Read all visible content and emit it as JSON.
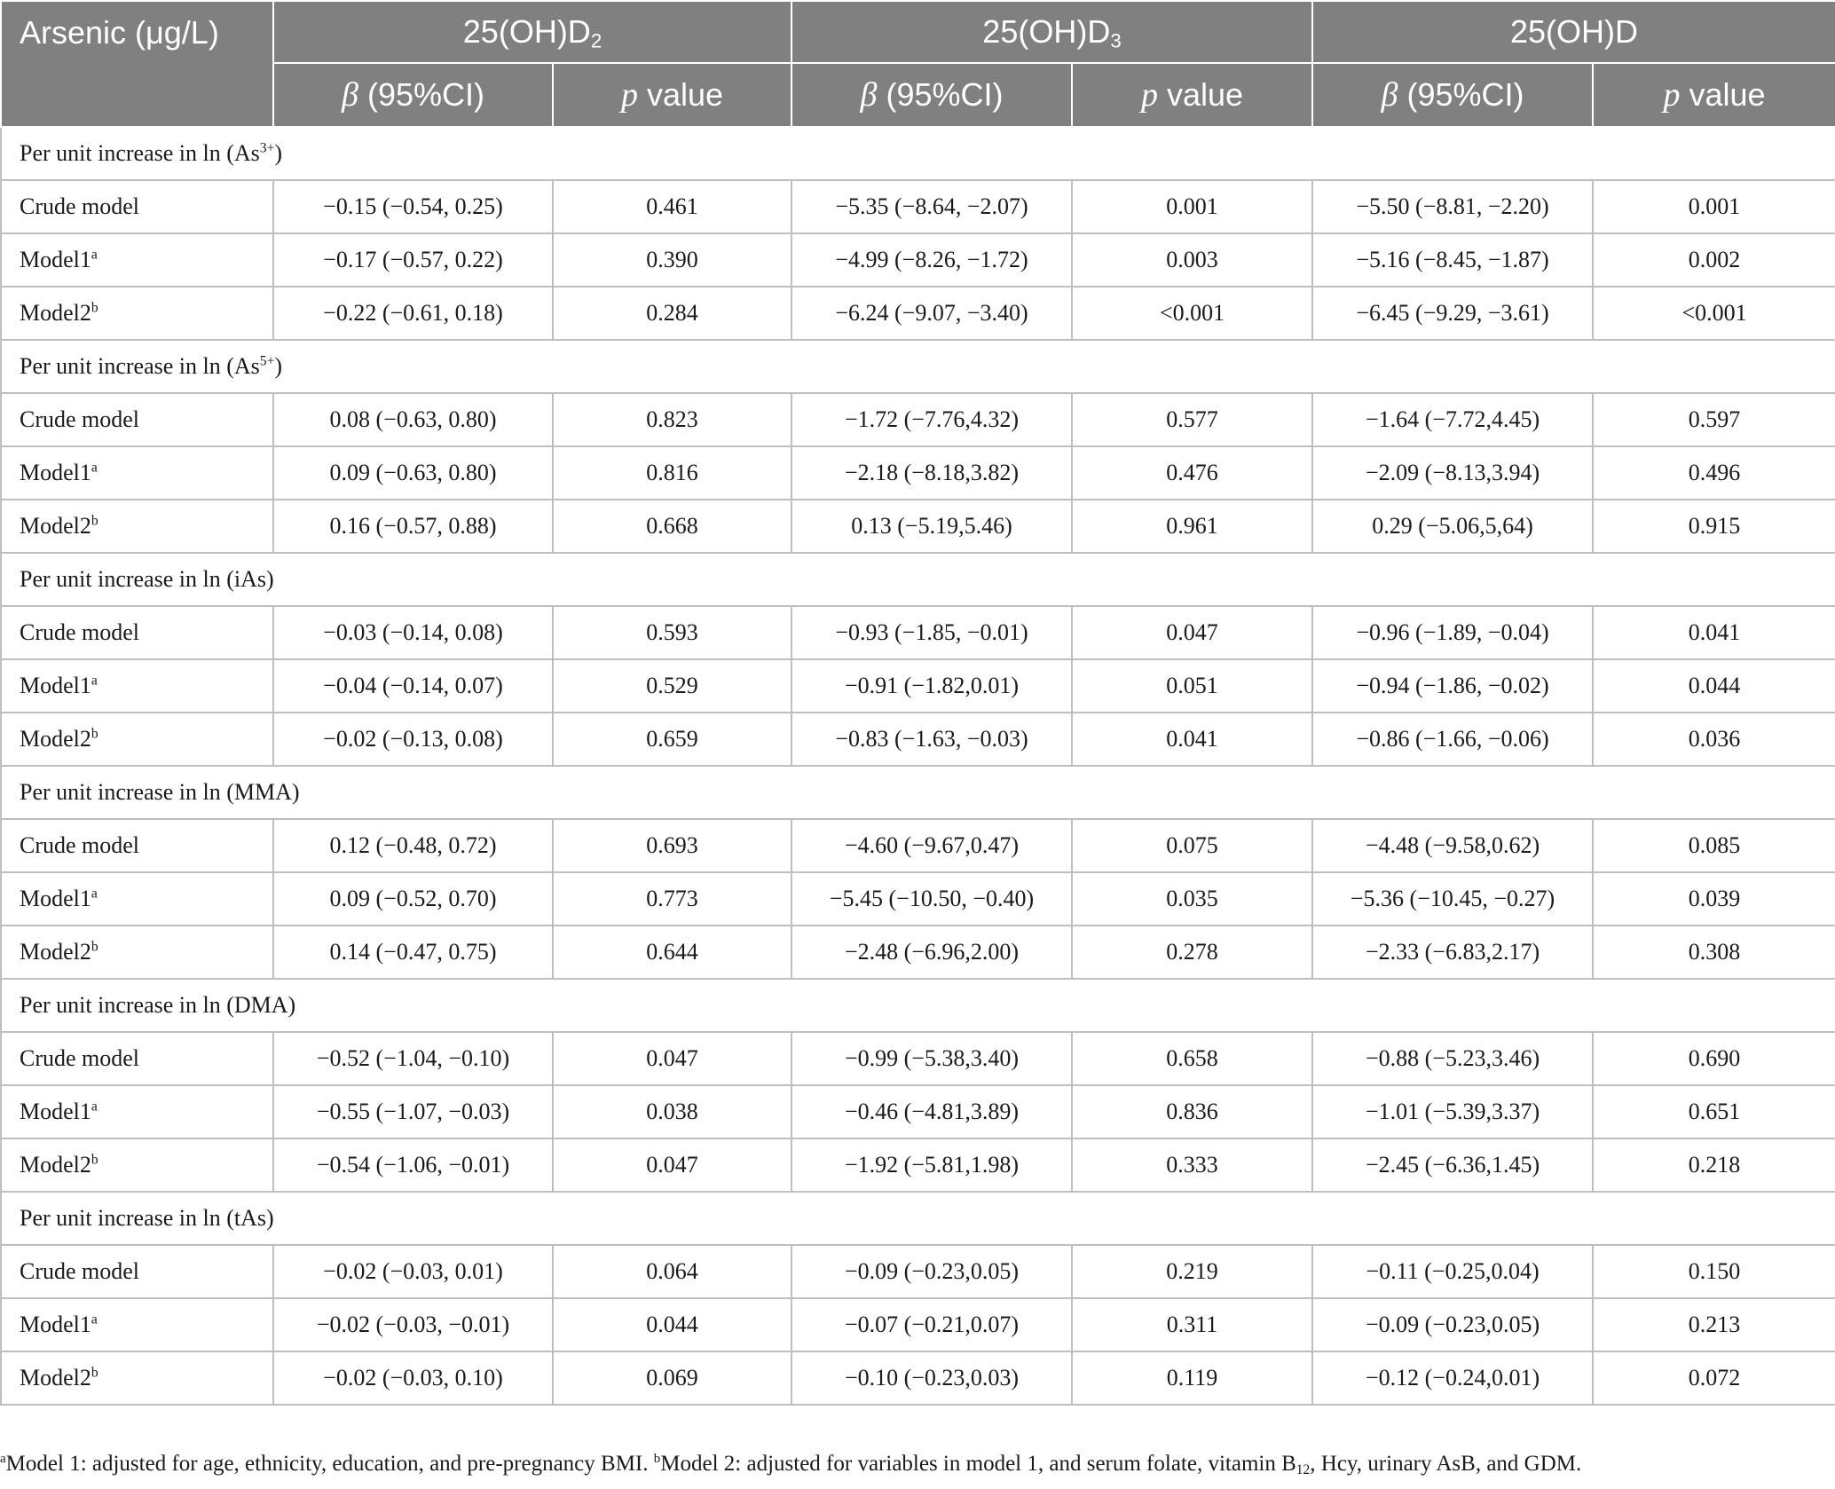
{
  "header": {
    "arsenic": "Arsenic (μg/L)",
    "col_d2": {
      "base": "25(OH)D",
      "sub": "2"
    },
    "col_d3": {
      "base": "25(OH)D",
      "sub": "3"
    },
    "col_d": "25(OH)D",
    "beta_sym": "β",
    "beta_rest": " (95%CI)",
    "p_sym": "p",
    "p_rest": " value"
  },
  "groups": [
    {
      "label": "Per unit increase in ln (As",
      "sup": "3+",
      "label_end": ")",
      "rows": [
        {
          "model": "Crude model",
          "msup": "",
          "d2_beta": "−0.15 (−0.54, 0.25)",
          "d2_p": "0.461",
          "d3_beta": "−5.35 (−8.64, −2.07)",
          "d3_p": "0.001",
          "d_beta": "−5.50 (−8.81, −2.20)",
          "d_p": "0.001"
        },
        {
          "model": "Model1",
          "msup": "a",
          "d2_beta": "−0.17 (−0.57, 0.22)",
          "d2_p": "0.390",
          "d3_beta": "−4.99 (−8.26, −1.72)",
          "d3_p": "0.003",
          "d_beta": "−5.16 (−8.45, −1.87)",
          "d_p": "0.002"
        },
        {
          "model": "Model2",
          "msup": "b",
          "d2_beta": "−0.22 (−0.61, 0.18)",
          "d2_p": "0.284",
          "d3_beta": "−6.24 (−9.07, −3.40)",
          "d3_p": "<0.001",
          "d_beta": "−6.45 (−9.29, −3.61)",
          "d_p": "<0.001"
        }
      ]
    },
    {
      "label": "Per unit increase in ln (As",
      "sup": "5+",
      "label_end": ")",
      "rows": [
        {
          "model": "Crude model",
          "msup": "",
          "d2_beta": "0.08 (−0.63, 0.80)",
          "d2_p": "0.823",
          "d3_beta": "−1.72 (−7.76,4.32)",
          "d3_p": "0.577",
          "d_beta": "−1.64 (−7.72,4.45)",
          "d_p": "0.597"
        },
        {
          "model": "Model1",
          "msup": "a",
          "d2_beta": "0.09 (−0.63, 0.80)",
          "d2_p": "0.816",
          "d3_beta": "−2.18 (−8.18,3.82)",
          "d3_p": "0.476",
          "d_beta": "−2.09 (−8.13,3.94)",
          "d_p": "0.496"
        },
        {
          "model": "Model2",
          "msup": "b",
          "d2_beta": "0.16 (−0.57, 0.88)",
          "d2_p": "0.668",
          "d3_beta": "0.13 (−5.19,5.46)",
          "d3_p": "0.961",
          "d_beta": "0.29 (−5.06,5,64)",
          "d_p": "0.915"
        }
      ]
    },
    {
      "label": "Per unit increase in ln (iAs)",
      "sup": "",
      "label_end": "",
      "rows": [
        {
          "model": "Crude model",
          "msup": "",
          "d2_beta": "−0.03 (−0.14, 0.08)",
          "d2_p": "0.593",
          "d3_beta": "−0.93 (−1.85, −0.01)",
          "d3_p": "0.047",
          "d_beta": "−0.96 (−1.89, −0.04)",
          "d_p": "0.041"
        },
        {
          "model": "Model1",
          "msup": "a",
          "d2_beta": "−0.04 (−0.14, 0.07)",
          "d2_p": "0.529",
          "d3_beta": "−0.91 (−1.82,0.01)",
          "d3_p": "0.051",
          "d_beta": "−0.94 (−1.86, −0.02)",
          "d_p": "0.044"
        },
        {
          "model": "Model2",
          "msup": "b",
          "d2_beta": "−0.02 (−0.13, 0.08)",
          "d2_p": "0.659",
          "d3_beta": "−0.83 (−1.63, −0.03)",
          "d3_p": "0.041",
          "d_beta": "−0.86 (−1.66, −0.06)",
          "d_p": "0.036"
        }
      ]
    },
    {
      "label": "Per unit increase in ln (MMA)",
      "sup": "",
      "label_end": "",
      "rows": [
        {
          "model": "Crude model",
          "msup": "",
          "d2_beta": "0.12 (−0.48, 0.72)",
          "d2_p": "0.693",
          "d3_beta": "−4.60 (−9.67,0.47)",
          "d3_p": "0.075",
          "d_beta": "−4.48 (−9.58,0.62)",
          "d_p": "0.085"
        },
        {
          "model": "Model1",
          "msup": "a",
          "d2_beta": "0.09 (−0.52, 0.70)",
          "d2_p": "0.773",
          "d3_beta": "−5.45 (−10.50, −0.40)",
          "d3_p": "0.035",
          "d_beta": "−5.36 (−10.45, −0.27)",
          "d_p": "0.039"
        },
        {
          "model": "Model2",
          "msup": "b",
          "d2_beta": "0.14 (−0.47, 0.75)",
          "d2_p": "0.644",
          "d3_beta": "−2.48 (−6.96,2.00)",
          "d3_p": "0.278",
          "d_beta": "−2.33 (−6.83,2.17)",
          "d_p": "0.308"
        }
      ]
    },
    {
      "label": "Per unit increase in ln (DMA)",
      "sup": "",
      "label_end": "",
      "rows": [
        {
          "model": "Crude model",
          "msup": "",
          "d2_beta": "−0.52 (−1.04, −0.10)",
          "d2_p": "0.047",
          "d3_beta": "−0.99 (−5.38,3.40)",
          "d3_p": "0.658",
          "d_beta": "−0.88 (−5.23,3.46)",
          "d_p": "0.690"
        },
        {
          "model": "Model1",
          "msup": "a",
          "d2_beta": "−0.55 (−1.07, −0.03)",
          "d2_p": "0.038",
          "d3_beta": "−0.46 (−4.81,3.89)",
          "d3_p": "0.836",
          "d_beta": "−1.01 (−5.39,3.37)",
          "d_p": "0.651"
        },
        {
          "model": "Model2",
          "msup": "b",
          "d2_beta": "−0.54 (−1.06, −0.01)",
          "d2_p": "0.047",
          "d3_beta": "−1.92 (−5.81,1.98)",
          "d3_p": "0.333",
          "d_beta": "−2.45 (−6.36,1.45)",
          "d_p": "0.218"
        }
      ]
    },
    {
      "label": "Per unit increase in ln (tAs)",
      "sup": "",
      "label_end": "",
      "rows": [
        {
          "model": "Crude model",
          "msup": "",
          "d2_beta": "−0.02 (−0.03, 0.01)",
          "d2_p": "0.064",
          "d3_beta": "−0.09 (−0.23,0.05)",
          "d3_p": "0.219",
          "d_beta": "−0.11 (−0.25,0.04)",
          "d_p": "0.150"
        },
        {
          "model": "Model1",
          "msup": "a",
          "d2_beta": "−0.02 (−0.03, −0.01)",
          "d2_p": "0.044",
          "d3_beta": "−0.07 (−0.21,0.07)",
          "d3_p": "0.311",
          "d_beta": "−0.09 (−0.23,0.05)",
          "d_p": "0.213"
        },
        {
          "model": "Model2",
          "msup": "b",
          "d2_beta": "−0.02 (−0.03, 0.10)",
          "d2_p": "0.069",
          "d3_beta": "−0.10 (−0.23,0.03)",
          "d3_p": "0.119",
          "d_beta": "−0.12 (−0.24,0.01)",
          "d_p": "0.072"
        }
      ]
    }
  ],
  "footnote": {
    "a_mark": "a",
    "a_text": "Model 1: adjusted for age, ethnicity, education, and pre-pregnancy BMI. ",
    "b_mark": "b",
    "b_text_1": "Model 2: adjusted for variables in model 1, and serum folate, vitamin B",
    "b_sub": "12",
    "b_text_2": ", Hcy, urinary AsB, and GDM."
  }
}
